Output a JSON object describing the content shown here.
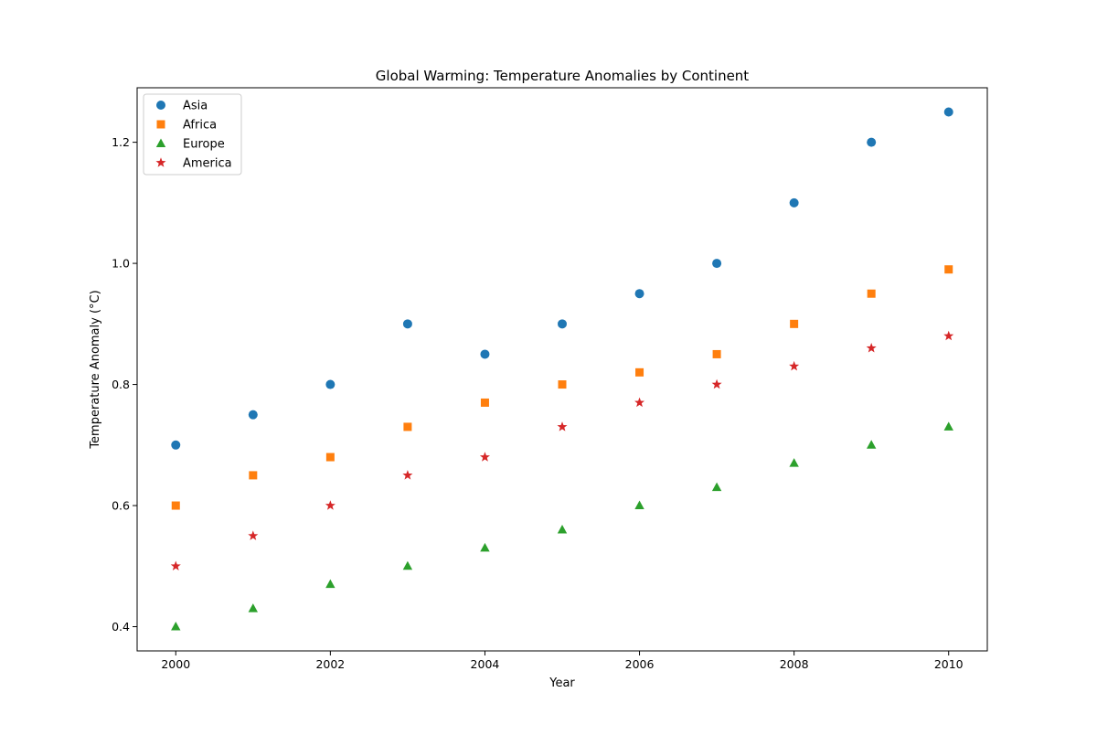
{
  "chart_data": {
    "type": "scatter",
    "title": "Global Warming: Temperature Anomalies by Continent",
    "xlabel": "Year",
    "ylabel": "Temperature Anomaly (°C)",
    "xlim": [
      1999.5,
      2010.5
    ],
    "ylim": [
      0.36,
      1.29
    ],
    "x_ticks": [
      2000,
      2002,
      2004,
      2006,
      2008,
      2010
    ],
    "y_ticks": [
      0.4,
      0.6,
      0.8,
      1.0,
      1.2
    ],
    "y_tick_labels": [
      "0.4",
      "0.6",
      "0.8",
      "1.0",
      "1.2"
    ],
    "grid": false,
    "legend_position": "upper-left",
    "x": [
      2000,
      2001,
      2002,
      2003,
      2004,
      2005,
      2006,
      2007,
      2008,
      2009,
      2010
    ],
    "series": [
      {
        "name": "Asia",
        "marker": "circle",
        "color": "#1f77b4",
        "values": [
          0.7,
          0.75,
          0.8,
          0.9,
          0.85,
          0.9,
          0.95,
          1.0,
          1.1,
          1.2,
          1.25
        ]
      },
      {
        "name": "Africa",
        "marker": "square",
        "color": "#ff7f0e",
        "values": [
          0.6,
          0.65,
          0.68,
          0.73,
          0.77,
          0.8,
          0.82,
          0.85,
          0.9,
          0.95,
          0.99
        ]
      },
      {
        "name": "Europe",
        "marker": "triangle",
        "color": "#2ca02c",
        "values": [
          0.4,
          0.43,
          0.47,
          0.5,
          0.53,
          0.56,
          0.6,
          0.63,
          0.67,
          0.7,
          0.73
        ]
      },
      {
        "name": "America",
        "marker": "star",
        "color": "#d62728",
        "values": [
          0.5,
          0.55,
          0.6,
          0.65,
          0.68,
          0.73,
          0.77,
          0.8,
          0.83,
          0.86,
          0.88
        ]
      }
    ]
  }
}
